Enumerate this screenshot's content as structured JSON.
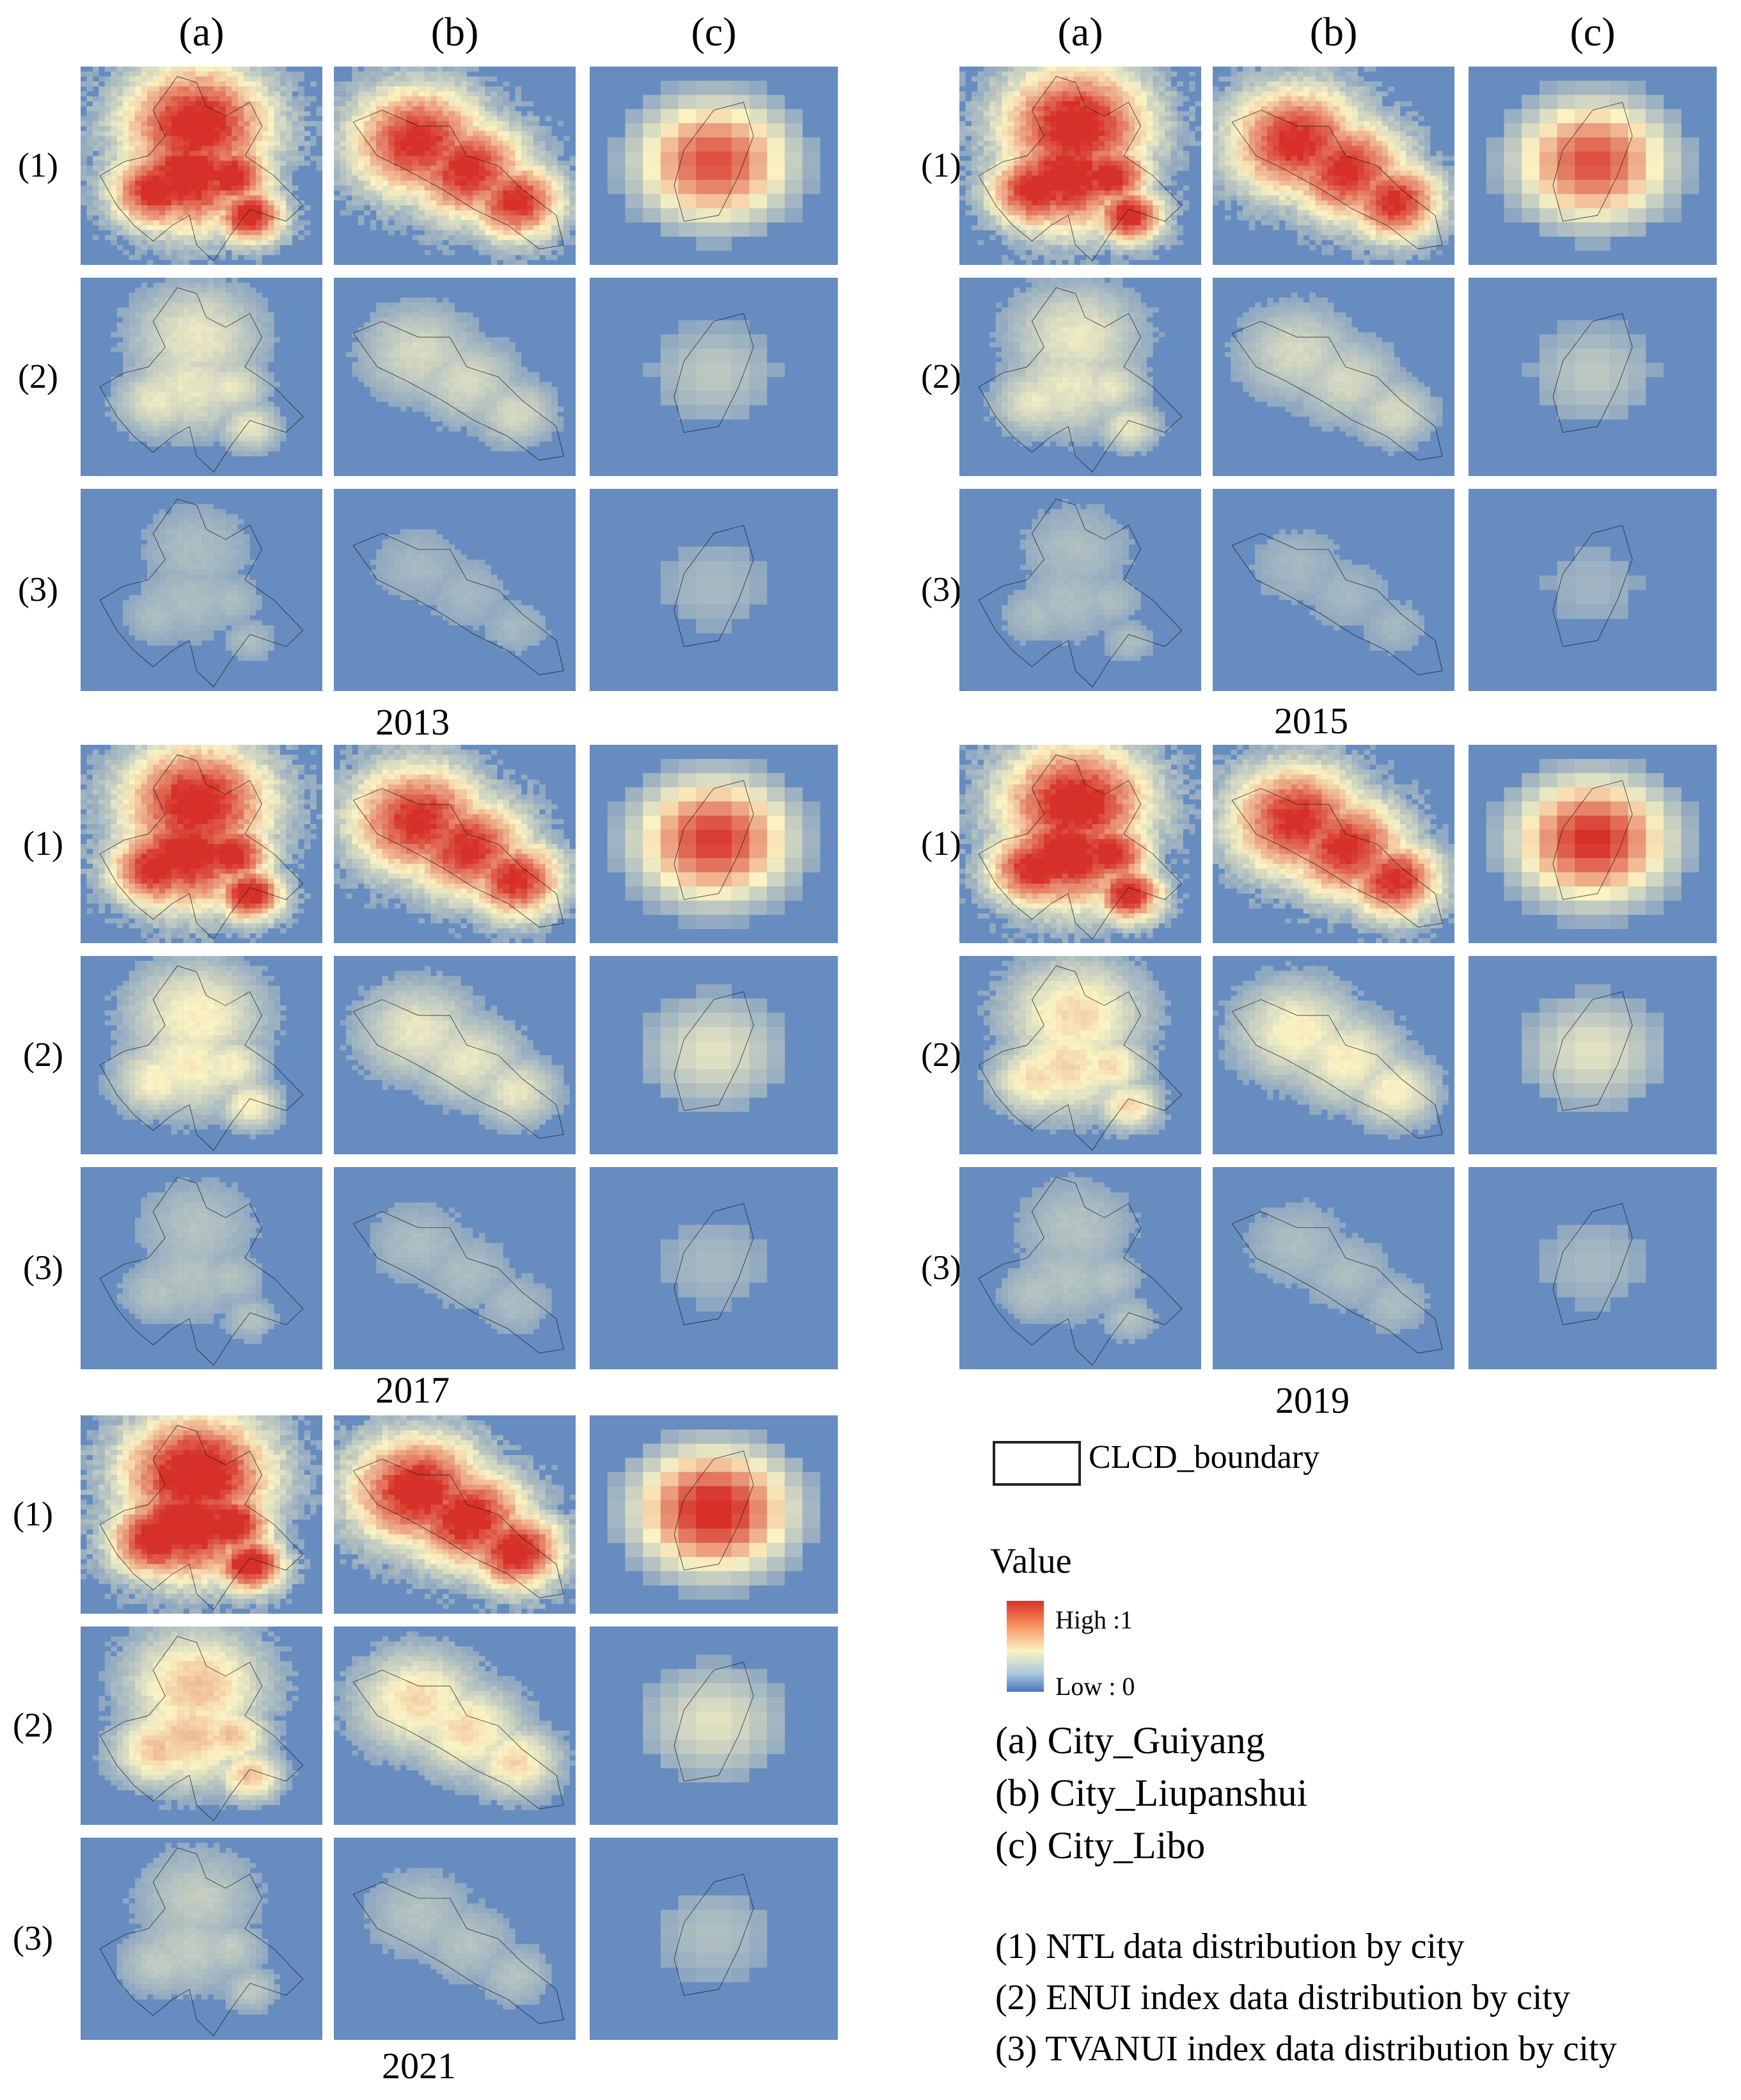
{
  "column_labels": [
    "(a)",
    "(b)",
    "(c)"
  ],
  "row_labels": [
    "(1)",
    "(2)",
    "(3)"
  ],
  "year_blocks": [
    {
      "year": "2013",
      "city_levels": [
        [
          0.9,
          0.85,
          0.8
        ],
        [
          0.35,
          0.3,
          0.25
        ],
        [
          0.2,
          0.18,
          0.2
        ]
      ]
    },
    {
      "year": "2015",
      "city_levels": [
        [
          0.9,
          0.85,
          0.8
        ],
        [
          0.35,
          0.3,
          0.25
        ],
        [
          0.2,
          0.18,
          0.18
        ]
      ]
    },
    {
      "year": "2017",
      "city_levels": [
        [
          0.9,
          0.85,
          0.85
        ],
        [
          0.4,
          0.35,
          0.35
        ],
        [
          0.22,
          0.2,
          0.2
        ]
      ]
    },
    {
      "year": "2019",
      "city_levels": [
        [
          0.9,
          0.85,
          0.88
        ],
        [
          0.45,
          0.4,
          0.35
        ],
        [
          0.22,
          0.2,
          0.2
        ]
      ]
    },
    {
      "year": "2021",
      "city_levels": [
        [
          0.95,
          0.9,
          0.92
        ],
        [
          0.5,
          0.45,
          0.35
        ],
        [
          0.25,
          0.22,
          0.22
        ]
      ]
    }
  ],
  "legend": {
    "boundary_label": "CLCD_boundary",
    "value_title": "Value",
    "high_label": "High :1",
    "low_label": "Low : 0",
    "cities": [
      "(a) City_Guiyang",
      "(b) City_Liupanshui",
      "(c) City_Libo"
    ],
    "indices": [
      "(1) NTL data distribution by city",
      "(2) ENUI index data distribution by city",
      "(3) TVANUI index data distribution by city"
    ]
  },
  "colors": {
    "low": "#4a78c0",
    "mid": "#fbf3c2",
    "high": "#d73027",
    "boundary": "#1a1a1a"
  }
}
